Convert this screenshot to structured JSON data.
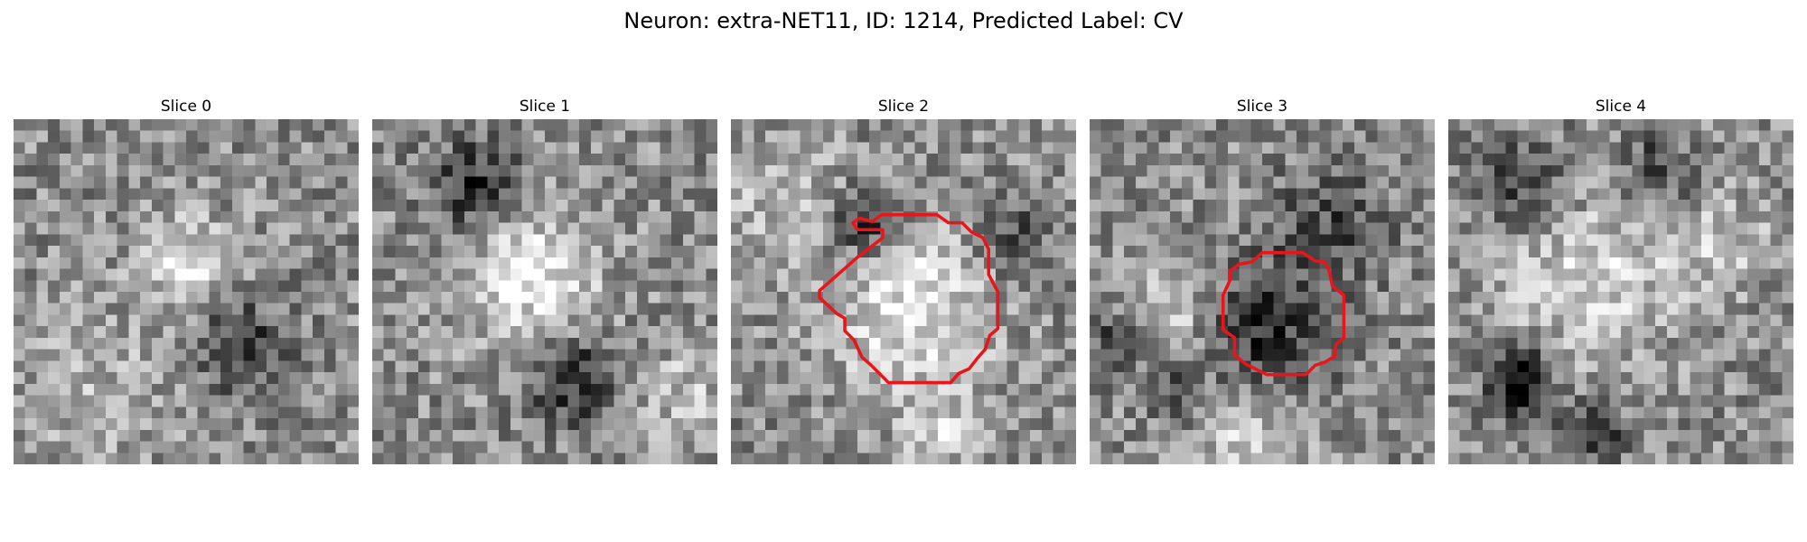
{
  "figure": {
    "title": "Neuron: extra-NET11, ID: 1214, Predicted Label: CV"
  },
  "panels": [
    {
      "title": "Slice 0",
      "seed": 11,
      "blobs": [
        [
          0.5,
          0.42,
          0.1,
          0.32
        ],
        [
          0.65,
          0.65,
          0.1,
          -0.35
        ],
        [
          0.25,
          0.8,
          0.18,
          0.12
        ]
      ],
      "contour": false
    },
    {
      "title": "Slice 1",
      "seed": 23,
      "blobs": [
        [
          0.45,
          0.45,
          0.14,
          0.4
        ],
        [
          0.3,
          0.2,
          0.1,
          -0.38
        ],
        [
          0.58,
          0.75,
          0.09,
          -0.4
        ],
        [
          0.9,
          0.8,
          0.1,
          0.2
        ]
      ],
      "contour": false
    },
    {
      "title": "Slice 2",
      "seed": 37,
      "blobs": [
        [
          0.52,
          0.55,
          0.17,
          0.35
        ],
        [
          0.38,
          0.3,
          0.07,
          -0.45
        ],
        [
          0.82,
          0.35,
          0.08,
          -0.25
        ],
        [
          0.6,
          0.9,
          0.07,
          0.25
        ],
        [
          0.15,
          0.2,
          0.12,
          0.2
        ]
      ],
      "contour": true
    },
    {
      "title": "Slice 3",
      "seed": 53,
      "blobs": [
        [
          0.5,
          0.62,
          0.14,
          -0.38
        ],
        [
          0.25,
          0.55,
          0.1,
          0.28
        ],
        [
          0.08,
          0.65,
          0.06,
          -0.35
        ],
        [
          0.25,
          0.8,
          0.06,
          -0.3
        ],
        [
          0.45,
          0.9,
          0.12,
          0.25
        ],
        [
          0.7,
          0.3,
          0.12,
          -0.25
        ]
      ],
      "contour": true
    },
    {
      "title": "Slice 4",
      "seed": 71,
      "blobs": [
        [
          0.4,
          0.45,
          0.18,
          0.3
        ],
        [
          0.2,
          0.75,
          0.07,
          -0.6
        ],
        [
          0.42,
          0.9,
          0.06,
          -0.4
        ],
        [
          0.22,
          0.2,
          0.1,
          -0.3
        ],
        [
          0.6,
          0.15,
          0.08,
          -0.3
        ],
        [
          0.8,
          0.35,
          0.1,
          0.2
        ]
      ],
      "contour": false
    }
  ]
}
